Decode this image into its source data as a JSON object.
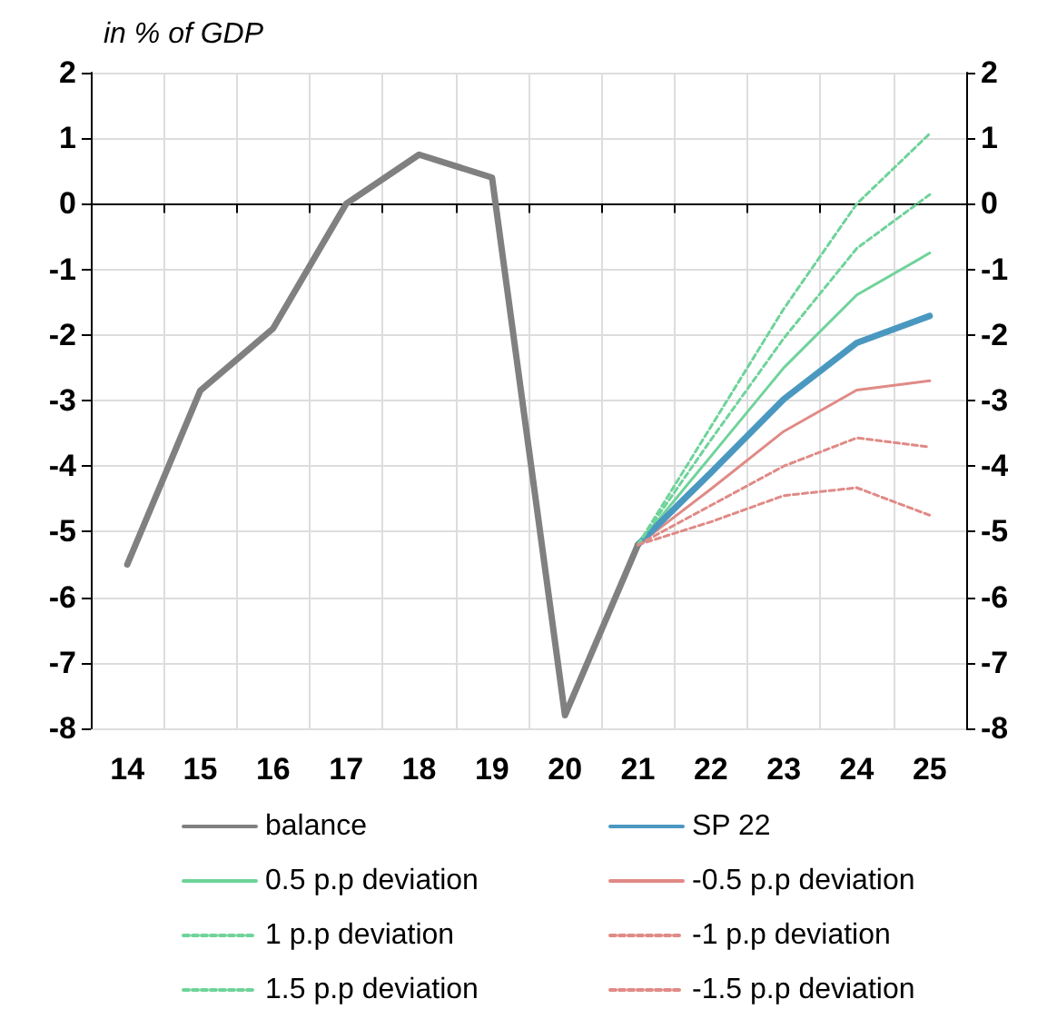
{
  "chart_data": {
    "type": "line",
    "subtitle": "in % of GDP",
    "categories": [
      "14",
      "15",
      "16",
      "17",
      "18",
      "19",
      "20",
      "21",
      "22",
      "23",
      "24",
      "25"
    ],
    "ylim": [
      -8,
      2
    ],
    "yticks": [
      -8,
      -7,
      -6,
      -5,
      -4,
      -3,
      -2,
      -1,
      0,
      1,
      2
    ],
    "y2lim": [
      -8,
      2
    ],
    "y2ticks": [
      -8,
      -7,
      -6,
      -5,
      -4,
      -3,
      -2,
      -1,
      0,
      1,
      2
    ],
    "grid": true,
    "legend": "bottom",
    "marker": "none",
    "series": [
      {
        "name": "balance",
        "color": "#808080",
        "line_style": "solid",
        "values": [
          -5.5,
          -2.85,
          -1.9,
          0,
          0.75,
          0.4,
          -7.8,
          -5.2,
          null,
          null,
          null,
          null
        ]
      },
      {
        "name": "SP 22",
        "color": "#4a98c0",
        "line_style": "solid",
        "values": [
          null,
          null,
          null,
          null,
          null,
          null,
          null,
          -5.2,
          -4.1,
          -2.98,
          -2.12,
          -1.71
        ]
      },
      {
        "name": "0.5 p.p deviation",
        "color": "#6fd39a",
        "line_style": "solid",
        "values": [
          null,
          null,
          null,
          null,
          null,
          null,
          null,
          -5.2,
          -3.85,
          -2.5,
          -1.39,
          -0.75
        ]
      },
      {
        "name": "-0.5 p.p deviation",
        "color": "#e08a86",
        "line_style": "solid",
        "values": [
          null,
          null,
          null,
          null,
          null,
          null,
          null,
          -5.2,
          -4.35,
          -3.47,
          -2.84,
          -2.7
        ]
      },
      {
        "name": "1 p.p deviation",
        "color": "#6fd39a",
        "line_style": "dashed",
        "values": [
          null,
          null,
          null,
          null,
          null,
          null,
          null,
          -5.2,
          -3.6,
          -2.05,
          -0.68,
          0.14
        ]
      },
      {
        "name": "-1 p.p deviation",
        "color": "#e08a86",
        "line_style": "dashed",
        "values": [
          null,
          null,
          null,
          null,
          null,
          null,
          null,
          -5.2,
          -4.6,
          -4.0,
          -3.57,
          -3.71
        ]
      },
      {
        "name": "1.5 p.p deviation",
        "color": "#6fd39a",
        "line_style": "dashed",
        "values": [
          null,
          null,
          null,
          null,
          null,
          null,
          null,
          -5.2,
          -3.4,
          -1.6,
          0,
          1.07
        ]
      },
      {
        "name": "-1.5 p.p deviation",
        "color": "#e08a86",
        "line_style": "dashed",
        "values": [
          null,
          null,
          null,
          null,
          null,
          null,
          null,
          -5.2,
          -4.85,
          -4.45,
          -4.33,
          -4.75
        ]
      }
    ]
  }
}
